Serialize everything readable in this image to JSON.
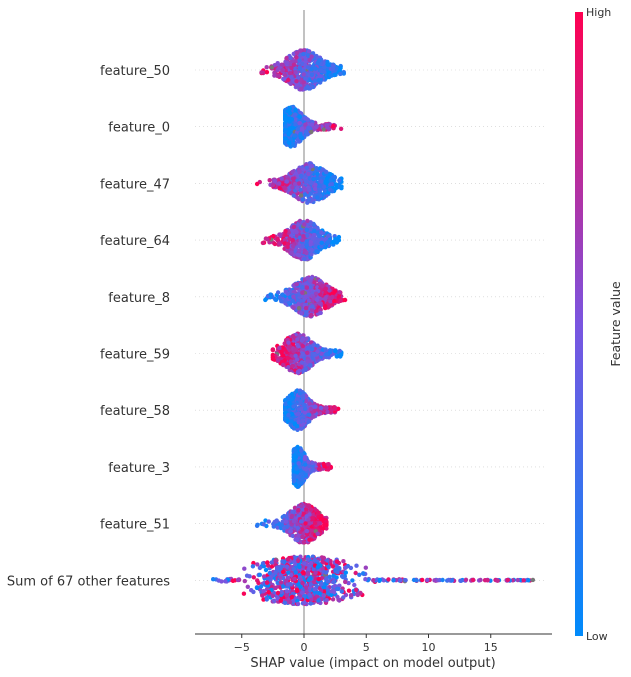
{
  "chart_data": {
    "type": "scatter",
    "subtype": "shap-beeswarm",
    "xlabel": "SHAP value (impact on model output)",
    "ylabel": "",
    "xlim": [
      -8.5,
      20.0
    ],
    "xticks": [
      -5,
      0,
      5,
      10,
      15
    ],
    "xtick_labels": [
      "−5",
      "0",
      "5",
      "10",
      "15"
    ],
    "grid": false,
    "zero_line": 0,
    "features": [
      {
        "name": "feature_50",
        "min": -3.8,
        "max": 3.2,
        "high_side": "left",
        "core": [
          -1.5,
          3.0
        ],
        "peak": 0.0
      },
      {
        "name": "feature_0",
        "min": -1.5,
        "max": 3.0,
        "high_side": "right",
        "core": [
          -1.2,
          2.5
        ],
        "peak": -1.0
      },
      {
        "name": "feature_47",
        "min": -3.8,
        "max": 3.0,
        "high_side": "left",
        "core": [
          -2.5,
          2.5
        ],
        "peak": 0.5
      },
      {
        "name": "feature_64",
        "min": -3.3,
        "max": 2.8,
        "high_side": "left",
        "core": [
          -1.5,
          2.0
        ],
        "peak": 0.0
      },
      {
        "name": "feature_8",
        "min": -3.3,
        "max": 3.3,
        "high_side": "right",
        "core": [
          -1.5,
          3.0
        ],
        "peak": 0.5
      },
      {
        "name": "feature_59",
        "min": -2.5,
        "max": 3.3,
        "high_side": "left",
        "core": [
          -1.5,
          3.0
        ],
        "peak": -0.5
      },
      {
        "name": "feature_58",
        "min": -1.5,
        "max": 2.8,
        "high_side": "right",
        "core": [
          -1.2,
          2.5
        ],
        "peak": -0.5
      },
      {
        "name": "feature_3",
        "min": -0.8,
        "max": 2.2,
        "high_side": "right",
        "core": [
          -0.5,
          2.0
        ],
        "peak": -0.5
      },
      {
        "name": "feature_51",
        "min": -3.8,
        "max": 1.8,
        "high_side": "right",
        "core": [
          -1.5,
          1.5
        ],
        "peak": 0.0
      },
      {
        "name": "Sum of 67 other features",
        "min": -7.5,
        "max": 18.5,
        "high_side": "mixed",
        "core": [
          -4.0,
          4.0
        ],
        "peak": 0.0
      }
    ],
    "colorbar": {
      "label": "Feature value",
      "high_label": "High",
      "low_label": "Low",
      "high_color": "#ff0051",
      "low_color": "#008bfb"
    },
    "missing_color": "#777777"
  }
}
